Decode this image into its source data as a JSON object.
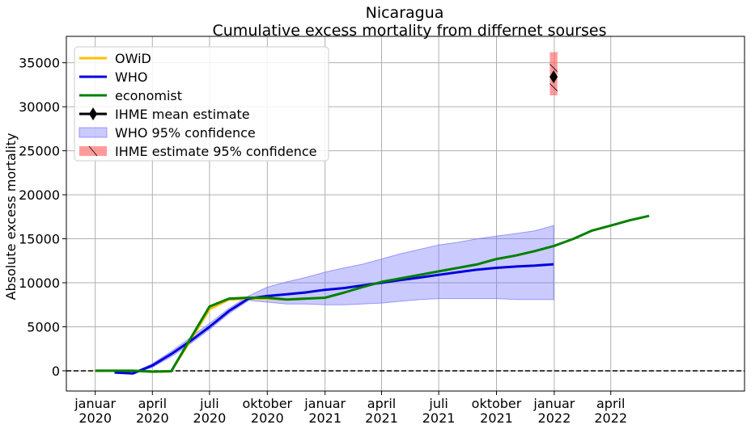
{
  "chart_data": {
    "type": "line",
    "title": "Nicaragua",
    "subtitle": "Cumulative excess mortality from differnet sourses",
    "ylabel": "Absolute excess mortality",
    "xlabel": "",
    "ylim": [
      -2300,
      38000
    ],
    "xlim": [
      "2019-11-16",
      "2022-10-31"
    ],
    "grid": true,
    "legend_position": "top-left",
    "y_ticks": [
      0,
      5000,
      10000,
      15000,
      20000,
      25000,
      30000,
      35000
    ],
    "x_ticks": [
      {
        "date": "2020-01-01",
        "line1": "januar",
        "line2": "2020"
      },
      {
        "date": "2020-04-01",
        "line1": "april",
        "line2": "2020"
      },
      {
        "date": "2020-07-01",
        "line1": "juli",
        "line2": "2020"
      },
      {
        "date": "2020-10-01",
        "line1": "oktober",
        "line2": "2020"
      },
      {
        "date": "2021-01-01",
        "line1": "januar",
        "line2": "2021"
      },
      {
        "date": "2021-04-01",
        "line1": "april",
        "line2": "2021"
      },
      {
        "date": "2021-07-01",
        "line1": "juli",
        "line2": "2021"
      },
      {
        "date": "2021-10-01",
        "line1": "oktober",
        "line2": "2021"
      },
      {
        "date": "2022-01-01",
        "line1": "januar",
        "line2": "2022"
      },
      {
        "date": "2022-04-01",
        "line1": "april",
        "line2": "2022"
      }
    ],
    "reference_line": {
      "y": 0,
      "style": "dashed",
      "color": "#000000"
    },
    "series": [
      {
        "name": "OWiD",
        "color": "#ffc000",
        "points": [
          [
            "2020-01-01",
            0
          ],
          [
            "2020-02-01",
            0
          ],
          [
            "2020-03-01",
            0
          ],
          [
            "2020-04-01",
            -100
          ],
          [
            "2020-05-01",
            -50
          ],
          [
            "2020-06-01",
            3500
          ],
          [
            "2020-07-01",
            7000
          ],
          [
            "2020-08-01",
            8100
          ],
          [
            "2020-09-01",
            8200
          ],
          [
            "2020-10-01",
            8200
          ],
          [
            "2020-11-01",
            8100
          ],
          [
            "2020-12-01",
            8200
          ],
          [
            "2021-01-01",
            8300
          ]
        ]
      },
      {
        "name": "WHO",
        "color": "#0000dd",
        "points": [
          [
            "2020-02-01",
            -200
          ],
          [
            "2020-03-01",
            -300
          ],
          [
            "2020-04-01",
            600
          ],
          [
            "2020-05-01",
            1900
          ],
          [
            "2020-06-01",
            3400
          ],
          [
            "2020-07-01",
            5000
          ],
          [
            "2020-08-01",
            6800
          ],
          [
            "2020-09-01",
            8200
          ],
          [
            "2020-10-01",
            8500
          ],
          [
            "2020-11-01",
            8700
          ],
          [
            "2020-12-01",
            8900
          ],
          [
            "2021-01-01",
            9200
          ],
          [
            "2021-02-01",
            9400
          ],
          [
            "2021-03-01",
            9700
          ],
          [
            "2021-04-01",
            10000
          ],
          [
            "2021-05-01",
            10300
          ],
          [
            "2021-06-01",
            10600
          ],
          [
            "2021-07-01",
            10900
          ],
          [
            "2021-08-01",
            11200
          ],
          [
            "2021-09-01",
            11500
          ],
          [
            "2021-10-01",
            11700
          ],
          [
            "2021-11-01",
            11850
          ],
          [
            "2021-12-01",
            11950
          ],
          [
            "2021-12-31",
            12100
          ]
        ]
      },
      {
        "name": "economist",
        "color": "#008000",
        "points": [
          [
            "2020-01-01",
            0
          ],
          [
            "2020-02-01",
            0
          ],
          [
            "2020-03-01",
            0
          ],
          [
            "2020-04-01",
            -100
          ],
          [
            "2020-05-01",
            -50
          ],
          [
            "2020-06-01",
            3700
          ],
          [
            "2020-07-01",
            7300
          ],
          [
            "2020-08-01",
            8200
          ],
          [
            "2020-09-01",
            8300
          ],
          [
            "2020-10-01",
            8300
          ],
          [
            "2020-11-01",
            8100
          ],
          [
            "2020-12-01",
            8200
          ],
          [
            "2021-01-01",
            8300
          ],
          [
            "2021-02-01",
            8900
          ],
          [
            "2021-03-01",
            9500
          ],
          [
            "2021-04-01",
            10100
          ],
          [
            "2021-05-01",
            10500
          ],
          [
            "2021-06-01",
            10900
          ],
          [
            "2021-07-01",
            11300
          ],
          [
            "2021-08-01",
            11700
          ],
          [
            "2021-09-01",
            12100
          ],
          [
            "2021-10-01",
            12700
          ],
          [
            "2021-11-01",
            13100
          ],
          [
            "2021-12-01",
            13600
          ],
          [
            "2022-01-01",
            14200
          ],
          [
            "2022-02-01",
            15000
          ],
          [
            "2022-03-01",
            15900
          ],
          [
            "2022-04-01",
            16500
          ],
          [
            "2022-05-01",
            17100
          ],
          [
            "2022-06-01",
            17600
          ]
        ]
      }
    ],
    "who_confidence_band": {
      "name": "WHO 95% confidence",
      "color": "#6666ff",
      "opacity": 0.35,
      "points": [
        [
          "2020-02-01",
          -250,
          -150
        ],
        [
          "2020-03-01",
          -350,
          -250
        ],
        [
          "2020-04-01",
          400,
          800
        ],
        [
          "2020-05-01",
          1600,
          2200
        ],
        [
          "2020-06-01",
          3100,
          3800
        ],
        [
          "2020-07-01",
          4700,
          5400
        ],
        [
          "2020-08-01",
          6500,
          7100
        ],
        [
          "2020-09-01",
          8000,
          8500
        ],
        [
          "2020-10-01",
          7800,
          9500
        ],
        [
          "2020-11-01",
          7600,
          10100
        ],
        [
          "2020-12-01",
          7600,
          10600
        ],
        [
          "2021-01-01",
          7500,
          11200
        ],
        [
          "2021-02-01",
          7500,
          11700
        ],
        [
          "2021-03-01",
          7600,
          12100
        ],
        [
          "2021-04-01",
          7700,
          12700
        ],
        [
          "2021-05-01",
          7900,
          13300
        ],
        [
          "2021-06-01",
          8100,
          13800
        ],
        [
          "2021-07-01",
          8200,
          14300
        ],
        [
          "2021-08-01",
          8200,
          14600
        ],
        [
          "2021-09-01",
          8200,
          15000
        ],
        [
          "2021-10-01",
          8200,
          15300
        ],
        [
          "2021-11-01",
          8100,
          15600
        ],
        [
          "2021-12-01",
          8100,
          15900
        ],
        [
          "2021-12-31",
          8100,
          16500
        ]
      ]
    },
    "ihme_estimate": {
      "name": "IHME mean estimate",
      "date": "2021-12-31",
      "mean": 33400,
      "color": "#000000"
    },
    "ihme_confidence": {
      "name": " IHME estimate 95% confidence",
      "date_start": "2021-12-25",
      "date_end": "2022-01-06",
      "low": 31300,
      "high": 36200,
      "color": "#ff6666",
      "opacity": 0.65
    }
  }
}
